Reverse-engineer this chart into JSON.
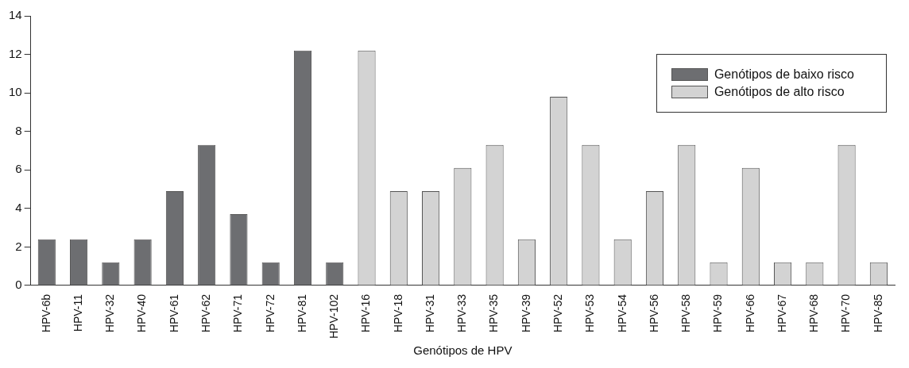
{
  "chart_data": {
    "type": "bar",
    "xlabel": "Genótipos de HPV",
    "categories": [
      "HPV-6b",
      "HPV-11",
      "HPV-32",
      "HPV-40",
      "HPV-61",
      "HPV-62",
      "HPV-71",
      "HPV-72",
      "HPV-81",
      "HPV-102",
      "HPV-16",
      "HPV-18",
      "HPV-31",
      "HPV-33",
      "HPV-35",
      "HPV-39",
      "HPV-52",
      "HPV-53",
      "HPV-54",
      "HPV-56",
      "HPV-58",
      "HPV-59",
      "HPV-66",
      "HPV-67",
      "HPV-68",
      "HPV-70",
      "HPV-85"
    ],
    "series": [
      {
        "name": "Genótipos de baixo risco",
        "color": "#6d6e71",
        "values": [
          2.4,
          2.4,
          1.2,
          2.4,
          4.9,
          7.3,
          3.7,
          1.2,
          12.2,
          1.2,
          null,
          null,
          null,
          null,
          null,
          null,
          null,
          null,
          null,
          null,
          null,
          null,
          null,
          null,
          null,
          null,
          null
        ]
      },
      {
        "name": "Genótipos de alto risco",
        "color": "#d3d3d3",
        "values": [
          null,
          null,
          null,
          null,
          null,
          null,
          null,
          null,
          null,
          null,
          12.2,
          4.9,
          4.9,
          6.1,
          7.3,
          2.4,
          9.8,
          7.3,
          2.4,
          4.9,
          7.3,
          1.2,
          6.1,
          1.2,
          1.2,
          7.3,
          1.2
        ]
      }
    ],
    "ylim": [
      0,
      14
    ],
    "yticks": [
      0,
      2,
      4,
      6,
      8,
      10,
      12,
      14
    ],
    "grid": false,
    "legend": "top right"
  }
}
